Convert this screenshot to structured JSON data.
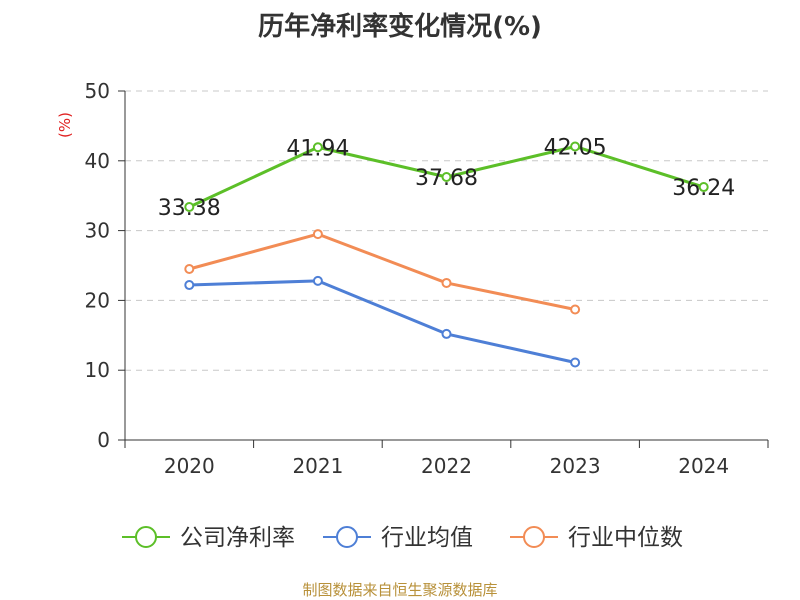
{
  "chart_data": {
    "type": "line",
    "title": "历年净利率变化情况(%)",
    "ylabel": "(%)",
    "xlabel": "",
    "ylim": [
      0,
      50
    ],
    "yticks": [
      0,
      10,
      20,
      30,
      40,
      50
    ],
    "categories": [
      "2020",
      "2021",
      "2022",
      "2023",
      "2024"
    ],
    "grid": true,
    "legend_position": "bottom-center",
    "series": [
      {
        "name": "公司净利率",
        "color": "#5cbf28",
        "values": [
          33.38,
          41.94,
          37.68,
          42.05,
          36.24
        ],
        "labels": [
          "33.38",
          "41.94",
          "37.68",
          "42.05",
          "36.24"
        ]
      },
      {
        "name": "行业均值",
        "color": "#4e7fd6",
        "values": [
          22.2,
          22.8,
          15.2,
          11.1,
          null
        ]
      },
      {
        "name": "行业中位数",
        "color": "#f28c55",
        "values": [
          24.5,
          29.5,
          22.5,
          18.7,
          null
        ]
      }
    ]
  },
  "source_note": "制图数据来自恒生聚源数据库"
}
